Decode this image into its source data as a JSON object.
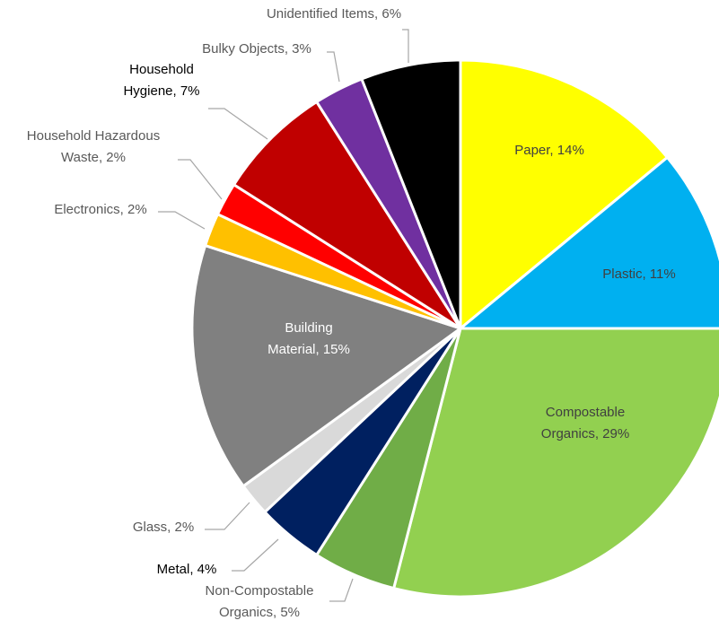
{
  "chart_data": {
    "type": "pie",
    "title": "",
    "slices": [
      {
        "label": "Paper",
        "text": "Paper, 14%",
        "value": 14,
        "color": "#ffff00",
        "label_color": "#404040"
      },
      {
        "label": "Plastic",
        "text": "Plastic, 11%",
        "value": 11,
        "color": "#00b0f0",
        "label_color": "#404040"
      },
      {
        "label": "Compostable Organics",
        "text": "Compostable|Organics, 29%",
        "value": 29,
        "color": "#92d050",
        "label_color": "#404040"
      },
      {
        "label": "Non-Compostable Organics",
        "text": "Non-Compostable|Organics, 5%",
        "value": 5,
        "color": "#70ad47",
        "label_color": "#595959"
      },
      {
        "label": "Metal",
        "text": "Metal, 4%",
        "value": 4,
        "color": "#002060",
        "label_color": "#000000"
      },
      {
        "label": "Glass",
        "text": "Glass, 2%",
        "value": 2,
        "color": "#d9d9d9",
        "label_color": "#595959"
      },
      {
        "label": "Building Material",
        "text": "Building|Material, 15%",
        "value": 15,
        "color": "#808080",
        "label_color": "#ffffff"
      },
      {
        "label": "Electronics",
        "text": "Electronics, 2%",
        "value": 2,
        "color": "#ffc000",
        "label_color": "#595959"
      },
      {
        "label": "Household Hazardous Waste",
        "text": "Household Hazardous|Waste, 2%",
        "value": 2,
        "color": "#ff0000",
        "label_color": "#595959"
      },
      {
        "label": "Household Hygiene",
        "text": "Household|Hygiene, 7%",
        "value": 7,
        "color": "#c00000",
        "label_color": "#000000"
      },
      {
        "label": "Bulky Objects",
        "text": "Bulky Objects, 3%",
        "value": 3,
        "color": "#7030a0",
        "label_color": "#595959"
      },
      {
        "label": "Unidentified Items",
        "text": "Unidentified Items, 6%",
        "value": 6,
        "color": "#000000",
        "label_color": "#595959"
      }
    ]
  }
}
